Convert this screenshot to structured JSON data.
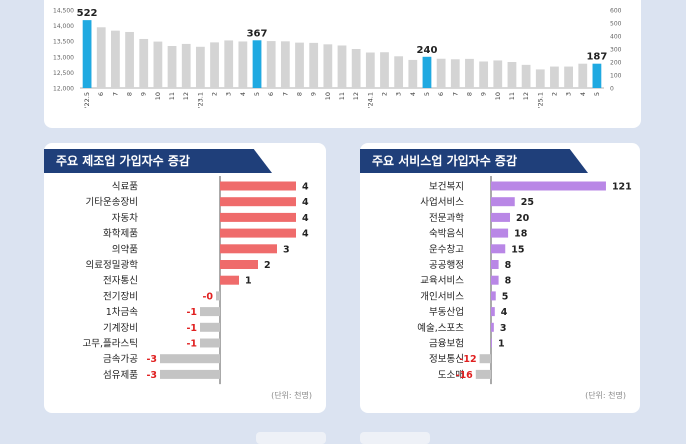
{
  "chart_data": [
    {
      "type": "bar",
      "title": "",
      "categories": [
        "'22.5",
        "6",
        "7",
        "8",
        "9",
        "10",
        "11",
        "12",
        "'23.1",
        "2",
        "3",
        "4",
        "5",
        "6",
        "7",
        "8",
        "9",
        "10",
        "11",
        "12",
        "'24.1",
        "2",
        "3",
        "4",
        "5",
        "6",
        "7",
        "8",
        "9",
        "10",
        "11",
        "12",
        "'25.1",
        "2",
        "3",
        "4",
        "5"
      ],
      "values": [
        522,
        467,
        441,
        431,
        377,
        357,
        323,
        339,
        317,
        351,
        366,
        358,
        367,
        361,
        359,
        349,
        347,
        336,
        327,
        300,
        273,
        275,
        244,
        216,
        240,
        225,
        221,
        224,
        204,
        212,
        200,
        178,
        143,
        165,
        165,
        187,
        187
      ],
      "highlighted_labels": {
        "0": "522",
        "12": "367",
        "24": "240",
        "36": "187"
      },
      "y_left_ticks": [
        "12,000",
        "12,500",
        "13,000",
        "13,500",
        "14,000",
        "14,500"
      ],
      "y_right_ticks": [
        "0",
        "100",
        "200",
        "300",
        "400",
        "500",
        "600"
      ],
      "ylim": [
        0,
        600
      ],
      "colors": {
        "bar": "#d4d4d4",
        "highlight": "#1fa9e1"
      }
    },
    {
      "type": "bar",
      "orientation": "horizontal",
      "title": "주요 제조업 가입자수 증감",
      "categories": [
        "식료품",
        "기타운송장비",
        "자동차",
        "화학제품",
        "의약품",
        "의료정밀광학",
        "전자통신",
        "전기장비",
        "1차금속",
        "기계장비",
        "고무,플라스틱",
        "금속가공",
        "섬유제품"
      ],
      "values": [
        4,
        4,
        4,
        4,
        3,
        2,
        1,
        -0.2,
        -1,
        -1,
        -1,
        -3,
        -3
      ],
      "value_labels": [
        "4",
        "4",
        "4",
        "4",
        "3",
        "2",
        "1",
        "-0",
        "-1",
        "-1",
        "-1",
        "-3",
        "-3"
      ],
      "unit": "(단위: 천명)",
      "colors": {
        "positive": "#ef6b6b",
        "negative": "#c4c4c4",
        "neg_text": "#e02020"
      }
    },
    {
      "type": "bar",
      "orientation": "horizontal",
      "title": "주요 서비스업 가입자수 증감",
      "categories": [
        "보건복지",
        "사업서비스",
        "전문과학",
        "숙박음식",
        "운수창고",
        "공공행정",
        "교육서비스",
        "개인서비스",
        "부동산업",
        "예술,스포츠",
        "금융보험",
        "정보통신",
        "도소매"
      ],
      "values": [
        121,
        25,
        20,
        18,
        15,
        8,
        8,
        5,
        4,
        3,
        1,
        -12,
        -16
      ],
      "value_labels": [
        "121",
        "25",
        "20",
        "18",
        "15",
        "8",
        "8",
        "5",
        "4",
        "3",
        "1",
        "-12",
        "-16"
      ],
      "unit": "(단위: 천명)",
      "colors": {
        "positive": "#b987e6",
        "negative": "#c4c4c4",
        "neg_text": "#e02020"
      }
    }
  ]
}
